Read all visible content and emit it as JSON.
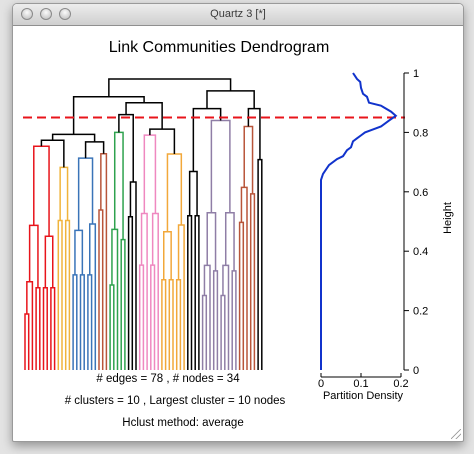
{
  "window": {
    "title": "Quartz 3 [*]"
  },
  "icons": {
    "close": "close-button-icon",
    "minimize": "minimize-button-icon",
    "zoom": "zoom-button-icon",
    "resize": "resize-grip-icon"
  },
  "chart_data": {
    "type": "dendrogram",
    "title": "Link Communities Dendrogram",
    "cut_line": {
      "height": 0.85,
      "color": "#e8141b",
      "style": "dashed"
    },
    "ylabel": "Height",
    "ylim": [
      0,
      1
    ],
    "yticks": [
      "0",
      "0.2",
      "0.4",
      "0.6",
      "0.8",
      "1"
    ],
    "community_colors": [
      "#e8141b",
      "#f0b43c",
      "#3a74b8",
      "#2ea24e",
      "#9a9a9a",
      "#ef88c0",
      "#f2a83a",
      "#8f7ea6",
      "#b8553a"
    ],
    "partition_density": {
      "xlabel": "Partition Density",
      "xticks": [
        "0",
        "0.1",
        "0.2"
      ],
      "xlim": [
        0,
        0.2
      ],
      "color": "#1133cc",
      "points": [
        [
          0,
          0
        ],
        [
          0,
          0.64
        ],
        [
          0.005,
          0.66
        ],
        [
          0.02,
          0.69
        ],
        [
          0.04,
          0.71
        ],
        [
          0.055,
          0.72
        ],
        [
          0.065,
          0.74
        ],
        [
          0.075,
          0.75
        ],
        [
          0.08,
          0.77
        ],
        [
          0.09,
          0.78
        ],
        [
          0.1,
          0.79
        ],
        [
          0.11,
          0.8
        ],
        [
          0.13,
          0.81
        ],
        [
          0.15,
          0.82
        ],
        [
          0.17,
          0.84
        ],
        [
          0.187,
          0.856
        ],
        [
          0.175,
          0.87
        ],
        [
          0.15,
          0.89
        ],
        [
          0.12,
          0.9
        ],
        [
          0.115,
          0.92
        ],
        [
          0.105,
          0.93
        ],
        [
          0.1,
          0.95
        ],
        [
          0.098,
          0.97
        ],
        [
          0.09,
          0.98
        ],
        [
          0.085,
          0.99
        ],
        [
          0.08,
          1.0
        ]
      ]
    }
  },
  "stats": {
    "line1": "# edges =  78 ,    # nodes =  34",
    "line2": "# clusters =  10 ,   Largest cluster =  10  nodes",
    "line3": "Hclust method:  average"
  }
}
